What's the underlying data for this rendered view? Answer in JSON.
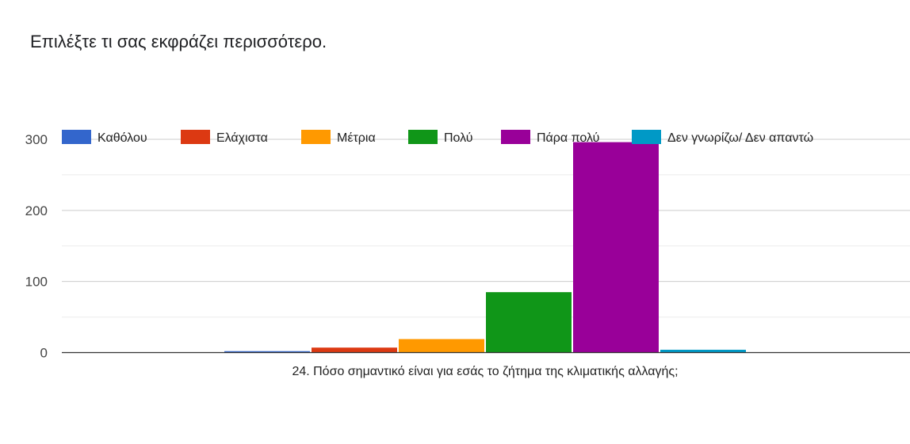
{
  "page": {
    "title": "Επιλέξτε τι σας εκφράζει περισσότερο."
  },
  "chart_data": {
    "type": "bar",
    "title": "",
    "xlabel": "",
    "ylabel": "",
    "categories": [
      "24. Πόσο σημαντικό είναι για εσάς το ζήτημα της κλιματικής αλλαγής;"
    ],
    "series": [
      {
        "name": "Καθόλου",
        "color": "#3366cc",
        "values": [
          2
        ]
      },
      {
        "name": "Ελάχιστα",
        "color": "#dc3912",
        "values": [
          7
        ]
      },
      {
        "name": "Μέτρια",
        "color": "#ff9900",
        "values": [
          19
        ]
      },
      {
        "name": "Πολύ",
        "color": "#109618",
        "values": [
          85
        ]
      },
      {
        "name": "Πάρα πολύ",
        "color": "#990099",
        "values": [
          296
        ]
      },
      {
        "name": "Δεν γνωρίζω/ Δεν απαντώ",
        "color": "#0099c6",
        "values": [
          4
        ]
      }
    ],
    "ylim": [
      0,
      300
    ],
    "yticks": [
      0,
      100,
      200,
      300
    ],
    "grid": true,
    "legend": "top"
  }
}
